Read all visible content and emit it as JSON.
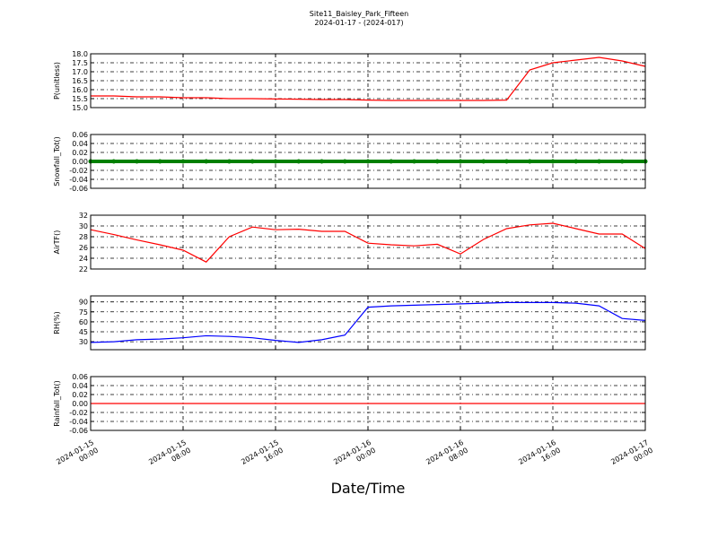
{
  "title": "Site11_Baisley_Park_Fifteen",
  "subtitle": "2024-01-17 - (2024-017)",
  "xlabel": "Date/Time",
  "xlim": [
    "2024-01-15 00:00",
    "2024-01-17 00:00"
  ],
  "xticks": [
    "2024-01-15 00:00",
    "2024-01-15 08:00",
    "2024-01-15 16:00",
    "2024-01-16 00:00",
    "2024-01-16 08:00",
    "2024-01-16 16:00",
    "2024-01-17 00:00"
  ],
  "x": [
    "2024-01-15 00:00",
    "2024-01-15 02:00",
    "2024-01-15 04:00",
    "2024-01-15 06:00",
    "2024-01-15 08:00",
    "2024-01-15 10:00",
    "2024-01-15 12:00",
    "2024-01-15 14:00",
    "2024-01-15 16:00",
    "2024-01-15 18:00",
    "2024-01-15 20:00",
    "2024-01-15 22:00",
    "2024-01-16 00:00",
    "2024-01-16 02:00",
    "2024-01-16 04:00",
    "2024-01-16 06:00",
    "2024-01-16 08:00",
    "2024-01-16 10:00",
    "2024-01-16 12:00",
    "2024-01-16 14:00",
    "2024-01-16 16:00",
    "2024-01-16 18:00",
    "2024-01-16 20:00",
    "2024-01-16 22:00",
    "2024-01-17 00:00"
  ],
  "chart_data": [
    {
      "type": "line",
      "ylabel": "P(unitless)",
      "ylim": [
        15,
        18
      ],
      "grid": true,
      "yticks": [
        {
          "value": 15,
          "label": "15.0"
        },
        15.5,
        {
          "value": 16,
          "label": "16.0"
        },
        16.5,
        {
          "value": 17,
          "label": "17.0"
        },
        17.5,
        {
          "value": 18,
          "label": "18.0"
        }
      ],
      "series": [
        {
          "color": "#ff0000",
          "marker": false,
          "values": [
            15.65,
            15.65,
            15.6,
            15.6,
            15.55,
            15.55,
            15.5,
            15.5,
            15.48,
            15.47,
            15.45,
            15.45,
            15.42,
            15.4,
            15.4,
            15.4,
            15.4,
            15.4,
            15.42,
            17.1,
            17.5,
            17.65,
            17.8,
            17.6,
            17.3
          ]
        }
      ]
    },
    {
      "type": "line",
      "ylabel": "Snowfall_Tot()",
      "ylim": [
        -0.06,
        0.06
      ],
      "grid": true,
      "yticks": [
        -0.06,
        -0.04,
        -0.02,
        {
          "value": 0,
          "label": "0.00"
        },
        0.02,
        0.04,
        0.06
      ],
      "series": [
        {
          "color": "#008000",
          "marker": true,
          "values": [
            0,
            0,
            0,
            0,
            0,
            0,
            0,
            0,
            0,
            0,
            0,
            0,
            0,
            0,
            0,
            0,
            0,
            0,
            0,
            0,
            0,
            0,
            0,
            0,
            0
          ]
        }
      ]
    },
    {
      "type": "line",
      "ylabel": "AirTF()",
      "ylim": [
        22,
        32
      ],
      "grid": true,
      "yticks": [
        22,
        24,
        26,
        28,
        30,
        32
      ],
      "series": [
        {
          "color": "#ff0000",
          "marker": false,
          "values": [
            29.3,
            28.4,
            27.4,
            26.5,
            25.5,
            23.3,
            28.0,
            29.8,
            29.3,
            29.4,
            29.0,
            29.0,
            26.8,
            26.5,
            26.3,
            26.6,
            24.8,
            27.5,
            29.5,
            30.2,
            30.5,
            29.5,
            28.5,
            28.5,
            25.8
          ]
        }
      ]
    },
    {
      "type": "line",
      "ylabel": "RH(%)",
      "ylim": [
        18,
        99
      ],
      "grid": true,
      "yticks": [
        30,
        45,
        60,
        75,
        90
      ],
      "series": [
        {
          "color": "#0000ff",
          "marker": false,
          "values": [
            29,
            30,
            33,
            34,
            36,
            39,
            38,
            36,
            32,
            29,
            33,
            40,
            82,
            84,
            85,
            86,
            87,
            88,
            89,
            89,
            89,
            88,
            84,
            65,
            62
          ]
        }
      ]
    },
    {
      "type": "line",
      "ylabel": "Rainfall_Tot()",
      "ylim": [
        -0.06,
        0.06
      ],
      "grid": true,
      "yticks": [
        -0.06,
        -0.04,
        -0.02,
        {
          "value": 0,
          "label": "0.00"
        },
        0.02,
        0.04,
        0.06
      ],
      "series": [
        {
          "color": "#ff0000",
          "marker": false,
          "values": [
            0,
            0,
            0,
            0,
            0,
            0,
            0,
            0,
            0,
            0,
            0,
            0,
            0,
            0,
            0,
            0,
            0,
            0,
            0,
            0,
            0,
            0,
            0,
            0,
            0
          ]
        }
      ]
    }
  ]
}
